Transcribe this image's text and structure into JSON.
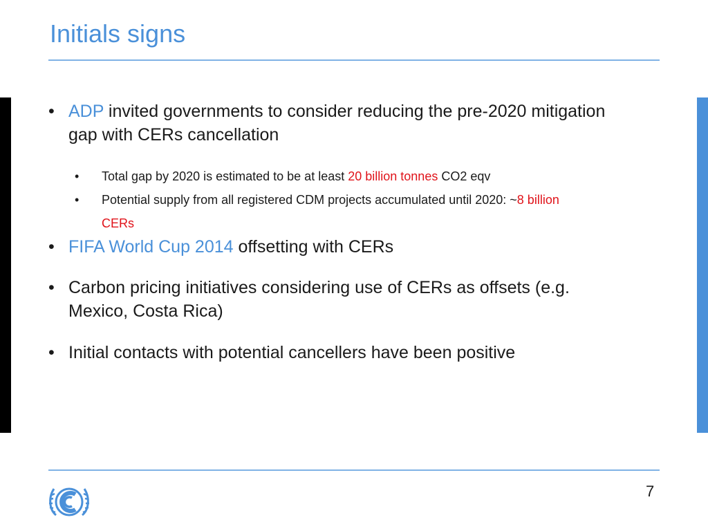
{
  "slide": {
    "title": "Initials signs",
    "bullet_char": "•",
    "bullets": [
      {
        "lead": "ADP",
        "rest": " invited governments to consider reducing the pre-2020 mitigation gap with CERs cancellation",
        "sub": [
          {
            "pre": "Total gap by 2020 is estimated to be at least ",
            "hl": "20 billion tonnes",
            "post": " CO2 eqv"
          },
          {
            "pre": "Potential supply from all registered CDM projects accumulated until 2020: ~",
            "hl": "8 billion CERs",
            "post": ""
          }
        ]
      },
      {
        "lead": "FIFA World Cup 2014",
        "rest": " offsetting with CERs"
      },
      {
        "text": "Carbon pricing initiatives considering use of CERs as offsets (e.g. Mexico, Costa Rica)"
      },
      {
        "text": "Initial contacts with potential cancellers have been positive"
      }
    ],
    "page_number": "7",
    "logo_icon": "unfccc-logo-icon",
    "colors": {
      "accent": "#4a90d9",
      "highlight": "#e0131a",
      "left_bar": "#000000"
    }
  }
}
